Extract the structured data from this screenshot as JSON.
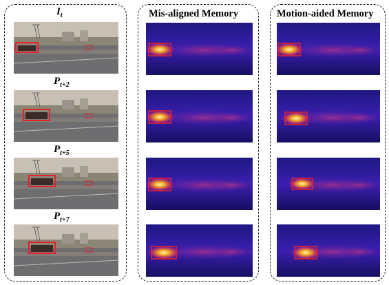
{
  "columns": {
    "frames": {
      "rows": [
        {
          "label_main": "I",
          "label_sub": "t"
        },
        {
          "label_main": "P",
          "label_sub": "t+2"
        },
        {
          "label_main": "P",
          "label_sub": "t+5"
        },
        {
          "label_main": "P",
          "label_sub": "t+7"
        }
      ]
    },
    "misaligned": {
      "title": "Mis-aligned Memory"
    },
    "motion": {
      "title": "Motion-aided Memory"
    }
  },
  "colors": {
    "box": "#e8202a",
    "heat_bg": "#2a1a9a",
    "heat_hot": "#fff6b0"
  },
  "icons": {
    "frames": "photo",
    "heatmaps": "attention-heatmap"
  }
}
